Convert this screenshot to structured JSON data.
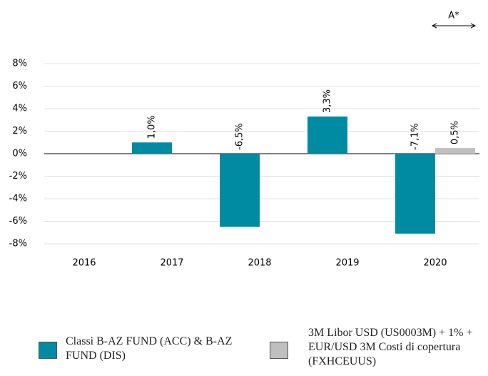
{
  "chart_data": {
    "type": "bar",
    "annotation": "A*",
    "categories": [
      "2016",
      "2017",
      "2018",
      "2019",
      "2020"
    ],
    "series": [
      {
        "name": "Classi B-AZ FUND (ACC) & B-AZ FUND (DIS)",
        "color": "#008ba3",
        "values": [
          null,
          1.0,
          -6.5,
          3.3,
          -7.1
        ],
        "value_labels": [
          null,
          "1,0%",
          "-6,5%",
          "3,3%",
          "-7,1%"
        ]
      },
      {
        "name": "3M Libor USD (US0003M) + 1% + EUR/USD 3M Costi di copertura (FXHCEUUS)",
        "color": "#bfbfbf",
        "values": [
          null,
          null,
          null,
          null,
          0.5
        ],
        "value_labels": [
          null,
          null,
          null,
          null,
          "0,5%"
        ]
      }
    ],
    "ylim": [
      -8,
      8
    ],
    "yticks": [
      {
        "value": -8,
        "label": "-8%"
      },
      {
        "value": -6,
        "label": "-6%"
      },
      {
        "value": -4,
        "label": "-4%"
      },
      {
        "value": -2,
        "label": "-2%"
      },
      {
        "value": 0,
        "label": "0%"
      },
      {
        "value": 2,
        "label": "2%"
      },
      {
        "value": 4,
        "label": "4%"
      },
      {
        "value": 6,
        "label": "6%"
      },
      {
        "value": 8,
        "label": "8%"
      }
    ],
    "grid": true
  }
}
